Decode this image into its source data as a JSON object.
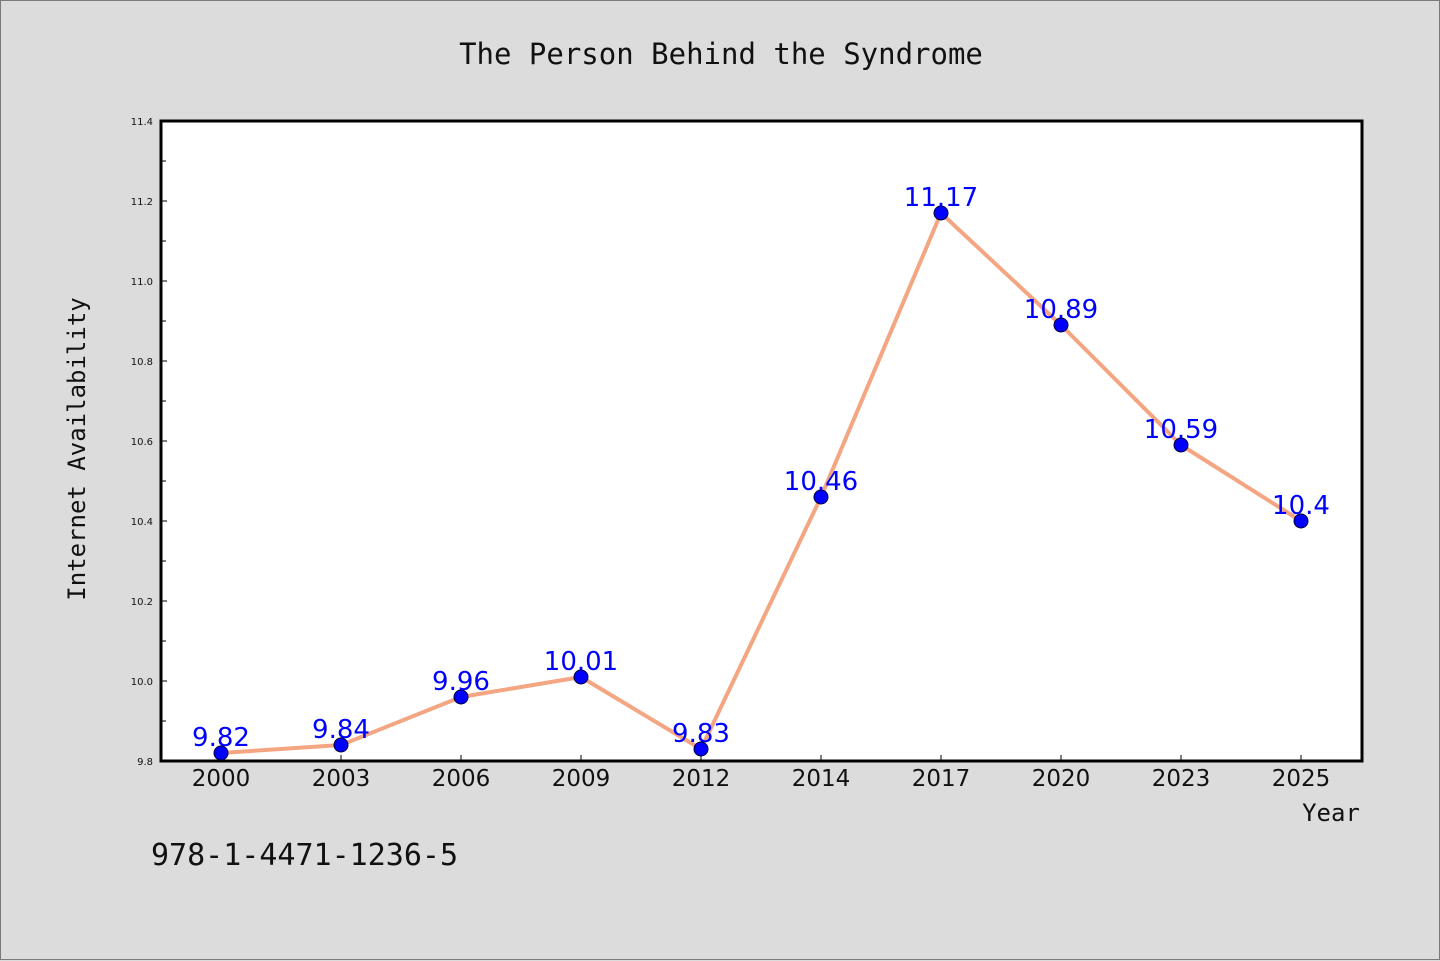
{
  "chart_data": {
    "type": "line",
    "title": "The Person Behind the Syndrome",
    "xlabel": "Year",
    "ylabel": "Internet Availability",
    "categories": [
      "2000",
      "2003",
      "2006",
      "2009",
      "2012",
      "2014",
      "2017",
      "2020",
      "2023",
      "2025"
    ],
    "series": [
      {
        "values": [
          9.82,
          9.84,
          9.96,
          10.01,
          9.83,
          10.46,
          11.17,
          10.89,
          10.59,
          10.4
        ],
        "labels": [
          "9.82",
          "9.84",
          "9.96",
          "10.01",
          "9.83",
          "10.46",
          "11.17",
          "10.89",
          "10.59",
          "10.4"
        ],
        "line_color": "#f4a582",
        "marker_color": "#0000ff",
        "label_color": "#0000ff"
      }
    ],
    "ylim": [
      9.8,
      11.4
    ],
    "yticks": [
      "9.8",
      "10.0",
      "10.2",
      "10.4",
      "10.6",
      "10.8",
      "11.0",
      "11.2",
      "11.4"
    ],
    "grid": false,
    "legend": "none"
  },
  "footer_text": "978-1-4471-1236-5",
  "colors": {
    "background": "#dcdcdc",
    "plot_background": "#ffffff",
    "axis": "#000000"
  }
}
